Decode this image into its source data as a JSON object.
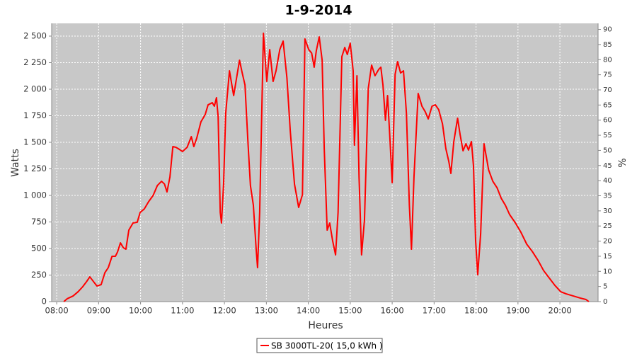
{
  "chart_data": {
    "type": "line",
    "title": "1-9-2014",
    "x_label": "Heures",
    "y_label": "Watts",
    "y2_label": "%",
    "grid": true,
    "legend": "bottom",
    "xlim": [
      7.88,
      20.91
    ],
    "xticks": [
      {
        "value": 8,
        "label": "08:00"
      },
      {
        "value": 9,
        "label": "09:00"
      },
      {
        "value": 10,
        "label": "10:00"
      },
      {
        "value": 11,
        "label": "11:00"
      },
      {
        "value": 12,
        "label": "12:00"
      },
      {
        "value": 13,
        "label": "13:00"
      },
      {
        "value": 14,
        "label": "14:00"
      },
      {
        "value": 15,
        "label": "15:00"
      },
      {
        "value": 16,
        "label": "16:00"
      },
      {
        "value": 17,
        "label": "17:00"
      },
      {
        "value": 18,
        "label": "18:00"
      },
      {
        "value": 19,
        "label": "19:00"
      },
      {
        "value": 20,
        "label": "20:00"
      }
    ],
    "ylim": [
      0,
      2620
    ],
    "yticks": [
      0,
      250,
      500,
      750,
      {
        "value": 1000,
        "label": "1 000"
      },
      {
        "value": 1250,
        "label": "1 250"
      },
      {
        "value": 1500,
        "label": "1 500"
      },
      {
        "value": 1750,
        "label": "1 750"
      },
      {
        "value": 2000,
        "label": "2 000"
      },
      {
        "value": 2250,
        "label": "2 250"
      },
      {
        "value": 2500,
        "label": "2 500"
      }
    ],
    "y2lim": [
      0,
      92
    ],
    "y2ticks": [
      0,
      5,
      10,
      15,
      20,
      25,
      30,
      35,
      40,
      45,
      50,
      55,
      60,
      65,
      70,
      75,
      80,
      85,
      90
    ],
    "x": [
      8.17,
      8.25,
      8.39,
      8.51,
      8.62,
      8.71,
      8.79,
      8.88,
      8.96,
      9.06,
      9.15,
      9.23,
      9.32,
      9.4,
      9.45,
      9.52,
      9.59,
      9.65,
      9.72,
      9.82,
      9.92,
      9.99,
      10.09,
      10.19,
      10.3,
      10.4,
      10.5,
      10.57,
      10.63,
      10.7,
      10.77,
      10.84,
      10.9,
      11.0,
      11.11,
      11.21,
      11.27,
      11.34,
      11.44,
      11.54,
      11.61,
      11.71,
      11.76,
      11.81,
      11.85,
      11.9,
      11.93,
      11.98,
      12.03,
      12.12,
      12.22,
      12.29,
      12.36,
      12.42,
      12.49,
      12.56,
      12.62,
      12.69,
      12.76,
      12.79,
      12.84,
      12.93,
      13.01,
      13.08,
      13.16,
      13.23,
      13.32,
      13.4,
      13.49,
      13.57,
      13.67,
      13.77,
      13.86,
      13.92,
      14.01,
      14.08,
      14.14,
      14.19,
      14.26,
      14.33,
      14.38,
      14.45,
      14.51,
      14.58,
      14.65,
      14.71,
      14.8,
      14.87,
      14.93,
      15.0,
      15.07,
      15.1,
      15.16,
      15.21,
      15.27,
      15.34,
      15.43,
      15.51,
      15.59,
      15.68,
      15.73,
      15.78,
      15.84,
      15.89,
      15.95,
      16.0,
      16.07,
      16.13,
      16.2,
      16.27,
      16.34,
      16.41,
      16.46,
      16.52,
      16.62,
      16.71,
      16.79,
      16.86,
      16.95,
      17.03,
      17.11,
      17.2,
      17.28,
      17.35,
      17.4,
      17.47,
      17.56,
      17.62,
      17.69,
      17.76,
      17.82,
      17.89,
      17.94,
      17.99,
      18.04,
      18.11,
      18.19,
      18.3,
      18.4,
      18.5,
      18.6,
      18.7,
      18.8,
      18.94,
      19.07,
      19.21,
      19.34,
      19.48,
      19.61,
      19.75,
      19.88,
      20.02,
      20.15,
      20.32,
      20.49,
      20.62,
      20.69
    ],
    "series": [
      {
        "name": "SB 3000TL-20( 15,0 kWh )",
        "color": "#ff0000",
        "values": [
          0,
          27,
          53,
          93,
          140,
          187,
          233,
          187,
          147,
          160,
          273,
          320,
          427,
          427,
          467,
          553,
          507,
          493,
          673,
          740,
          747,
          840,
          873,
          940,
          1000,
          1093,
          1133,
          1107,
          1033,
          1173,
          1460,
          1453,
          1440,
          1413,
          1453,
          1553,
          1460,
          1540,
          1693,
          1760,
          1853,
          1873,
          1840,
          1920,
          1740,
          840,
          740,
          1107,
          1773,
          2173,
          1940,
          2107,
          2273,
          2160,
          2040,
          1507,
          1093,
          907,
          473,
          320,
          840,
          2527,
          2073,
          2373,
          2073,
          2173,
          2373,
          2453,
          2107,
          1607,
          1107,
          887,
          1007,
          2473,
          2373,
          2340,
          2207,
          2360,
          2493,
          2273,
          1440,
          673,
          740,
          573,
          440,
          840,
          2307,
          2393,
          2327,
          2433,
          2173,
          1473,
          2127,
          1173,
          440,
          773,
          2007,
          2227,
          2127,
          2187,
          2207,
          2040,
          1707,
          1940,
          1507,
          1120,
          2140,
          2260,
          2153,
          2173,
          1773,
          907,
          493,
          1173,
          1960,
          1840,
          1787,
          1720,
          1840,
          1853,
          1807,
          1673,
          1440,
          1320,
          1207,
          1507,
          1727,
          1573,
          1420,
          1487,
          1427,
          1507,
          1273,
          573,
          253,
          640,
          1487,
          1240,
          1133,
          1073,
          973,
          907,
          820,
          740,
          653,
          540,
          473,
          387,
          293,
          220,
          153,
          93,
          73,
          53,
          33,
          20,
          0
        ]
      }
    ]
  }
}
